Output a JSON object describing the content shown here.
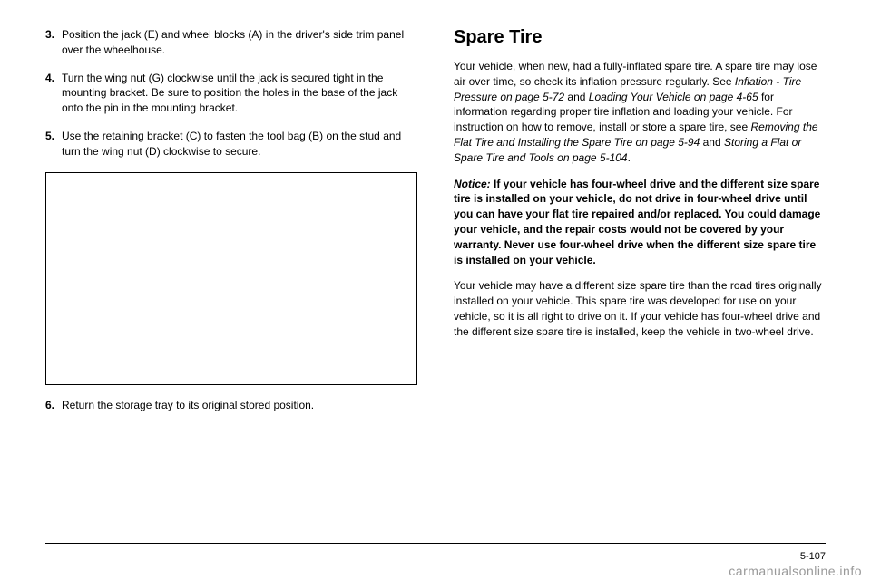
{
  "left": {
    "items": [
      {
        "num": "3.",
        "text": "Position the jack (E) and wheel blocks (A) in the driver's side trim panel over the wheelhouse."
      },
      {
        "num": "4.",
        "text": "Turn the wing nut (G) clockwise until the jack is secured tight in the mounting bracket. Be sure to position the holes in the base of the jack onto the pin in the mounting bracket."
      },
      {
        "num": "5.",
        "text": "Use the retaining bracket (C) to fasten the tool bag (B) on the stud and turn the wing nut (D) clockwise to secure."
      },
      {
        "num": "6.",
        "text": "Return the storage tray to its original stored position."
      }
    ]
  },
  "right": {
    "title": "Spare Tire",
    "p1_a": "Your vehicle, when new, had a fully-inflated spare tire. A spare tire may lose air over time, so check its inflation pressure regularly. See ",
    "p1_ref1": "Inflation - Tire Pressure on page 5-72",
    "p1_b": " and ",
    "p1_ref2": "Loading Your Vehicle on page 4-65",
    "p1_c": " for information regarding proper tire inflation and loading your vehicle. For instruction on how to remove, install or store a spare tire, see ",
    "p1_ref3": "Removing the Flat Tire and Installing the Spare Tire on page 5-94",
    "p1_d": " and ",
    "p1_ref4": "Storing a Flat or Spare Tire and Tools on page 5-104",
    "p1_e": ".",
    "notice_label": "Notice:",
    "notice_text": "If your vehicle has four-wheel drive and the different size spare tire is installed on your vehicle, do not drive in four-wheel drive until you can have your flat tire repaired and/or replaced. You could damage your vehicle, and the repair costs would not be covered by your warranty. Never use four-wheel drive when the different size spare tire is installed on your vehicle.",
    "p3": "Your vehicle may have a different size spare tire than the road tires originally installed on your vehicle. This spare tire was developed for use on your vehicle, so it is all right to drive on it. If your vehicle has four-wheel drive and the different size spare tire is installed, keep the vehicle in two-wheel drive."
  },
  "page_num": "5-107",
  "watermark": "carmanualsonline.info"
}
